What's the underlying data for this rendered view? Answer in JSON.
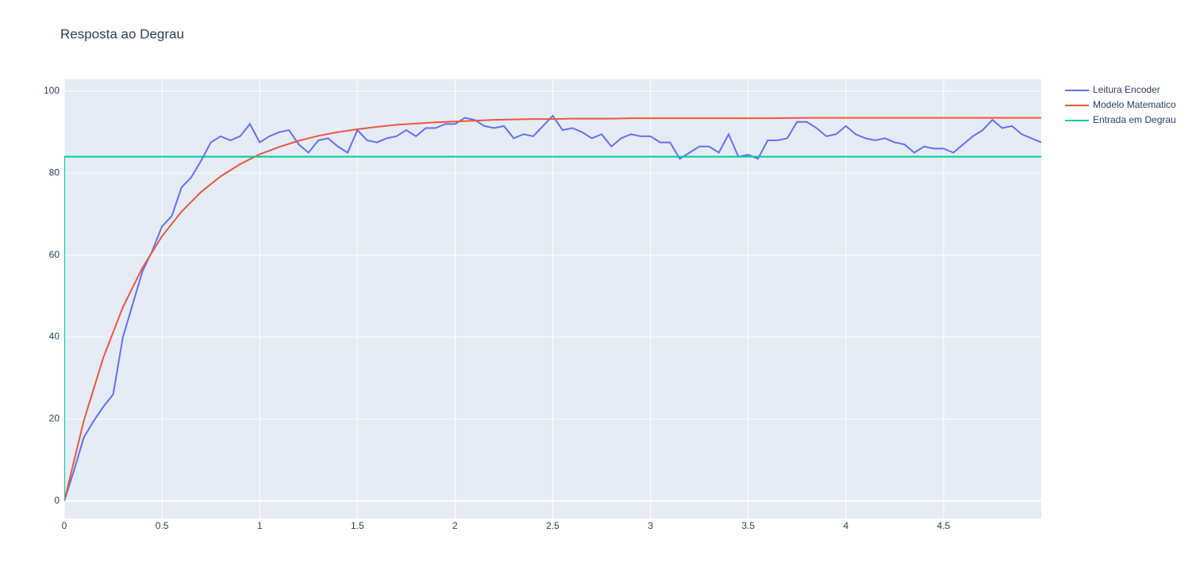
{
  "chart_data": {
    "type": "line",
    "title": "Resposta ao Degrau",
    "xlim": [
      0,
      5
    ],
    "ylim": [
      -4.3,
      102.9
    ],
    "xticks": [
      0,
      0.5,
      1,
      1.5,
      2,
      2.5,
      3,
      3.5,
      4,
      4.5
    ],
    "yticks": [
      0,
      20,
      40,
      60,
      80,
      100
    ],
    "grid": true,
    "legend": "outside-top-right",
    "series": [
      {
        "name": "Leitura Encoder",
        "color": "#636efa",
        "x": [
          0,
          0.05,
          0.1,
          0.15,
          0.2,
          0.25,
          0.3,
          0.35,
          0.4,
          0.45,
          0.5,
          0.55,
          0.6,
          0.65,
          0.7,
          0.75,
          0.8,
          0.85,
          0.9,
          0.95,
          1,
          1.05,
          1.1,
          1.15,
          1.2,
          1.25,
          1.3,
          1.35,
          1.4,
          1.45,
          1.5,
          1.55,
          1.6,
          1.65,
          1.7,
          1.75,
          1.8,
          1.85,
          1.9,
          1.95,
          2,
          2.05,
          2.1,
          2.15,
          2.2,
          2.25,
          2.3,
          2.35,
          2.4,
          2.45,
          2.5,
          2.55,
          2.6,
          2.65,
          2.7,
          2.75,
          2.8,
          2.85,
          2.9,
          2.95,
          3,
          3.05,
          3.1,
          3.15,
          3.2,
          3.25,
          3.3,
          3.35,
          3.4,
          3.45,
          3.5,
          3.55,
          3.6,
          3.65,
          3.7,
          3.75,
          3.8,
          3.85,
          3.9,
          3.95,
          4,
          4.05,
          4.1,
          4.15,
          4.2,
          4.25,
          4.3,
          4.35,
          4.4,
          4.45,
          4.5,
          4.55,
          4.6,
          4.65,
          4.7,
          4.75,
          4.8,
          4.85,
          4.9,
          4.95,
          5
        ],
        "values": [
          0,
          7.5,
          15.5,
          19.5,
          23,
          26,
          40,
          48,
          56,
          61,
          67,
          69.5,
          76.5,
          79,
          83,
          87.5,
          89,
          88,
          89,
          92,
          87.5,
          89,
          90,
          90.5,
          87,
          85,
          88,
          88.5,
          86.5,
          85,
          90.5,
          88,
          87.5,
          88.5,
          89,
          90.5,
          89,
          91,
          91,
          92,
          92,
          93.5,
          93,
          91.5,
          91,
          91.5,
          88.5,
          89.5,
          89,
          91.5,
          94,
          90.5,
          91,
          90,
          88.5,
          89.5,
          86.5,
          88.5,
          89.5,
          89,
          89,
          87.5,
          87.5,
          83.5,
          85,
          86.5,
          86.5,
          85,
          89.5,
          84,
          84.5,
          83.5,
          88,
          88,
          88.5,
          92.5,
          92.5,
          91,
          89,
          89.5,
          91.5,
          89.5,
          88.5,
          88,
          88.5,
          87.5,
          87,
          85,
          86.5,
          86,
          86,
          85,
          87,
          89,
          90.5,
          93,
          91,
          91.5,
          89.5,
          88.5,
          87.5
        ]
      },
      {
        "name": "Modelo Matematico",
        "color": "#EF553B",
        "x": [
          0,
          0.1,
          0.2,
          0.3,
          0.4,
          0.5,
          0.6,
          0.7,
          0.8,
          0.9,
          1,
          1.1,
          1.2,
          1.3,
          1.4,
          1.5,
          1.6,
          1.7,
          1.8,
          1.9,
          2,
          2.1,
          2.2,
          2.3,
          2.4,
          2.5,
          2.6,
          2.7,
          2.8,
          2.9,
          3,
          3.2,
          3.4,
          3.6,
          3.8,
          4,
          4.5,
          5
        ],
        "values": [
          0,
          19.6,
          35,
          47.3,
          56.9,
          64.6,
          70.6,
          75.4,
          79.2,
          82.2,
          84.6,
          86.4,
          87.9,
          89.1,
          90,
          90.7,
          91.3,
          91.8,
          92.1,
          92.4,
          92.6,
          92.8,
          93,
          93.1,
          93.2,
          93.2,
          93.3,
          93.3,
          93.3,
          93.4,
          93.4,
          93.4,
          93.4,
          93.4,
          93.5,
          93.5,
          93.5,
          93.5
        ]
      },
      {
        "name": "Entrada em Degrau",
        "color": "#00cc96",
        "x": [
          0,
          0,
          5
        ],
        "values": [
          0,
          84,
          84
        ]
      }
    ]
  }
}
